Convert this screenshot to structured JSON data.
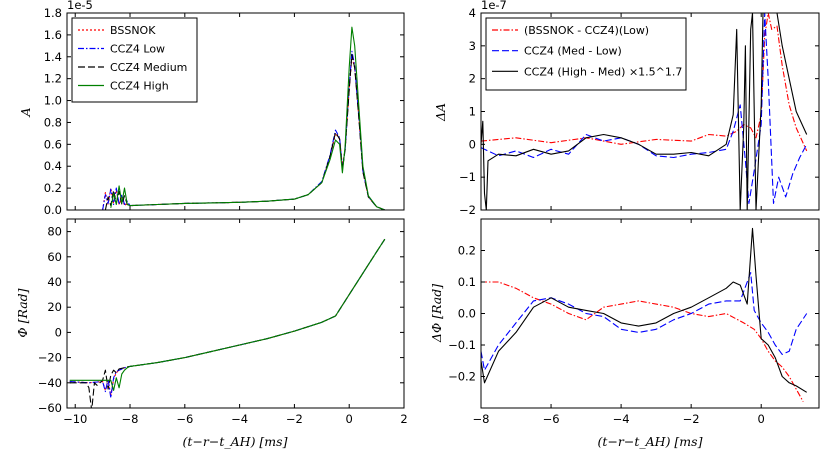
{
  "chart_data": [
    {
      "type": "line",
      "ylabel": "A",
      "exponent": "1e-5",
      "xlim": [
        -10.3,
        2
      ],
      "ylim": [
        0,
        1.8
      ],
      "xticks": [
        -10,
        -8,
        -6,
        -4,
        -2,
        0,
        2
      ],
      "xticklabels": [
        "",
        "",
        "",
        "",
        "",
        "",
        ""
      ],
      "yticks": [
        0,
        0.2,
        0.4,
        0.6,
        0.8,
        1.0,
        1.2,
        1.4,
        1.6,
        1.8
      ],
      "yticklabels": [
        "0.0",
        "0.2",
        "0.4",
        "0.6",
        "0.8",
        "1.0",
        "1.2",
        "1.4",
        "1.6",
        "1.8"
      ],
      "legend": "top-left",
      "series": [
        {
          "name": "BSSNOK",
          "color": "#ff0000",
          "dash": "2,2",
          "x": [
            -9.0,
            -8.9,
            -8.8,
            -8.7,
            -8.6,
            -8.5,
            -8.4,
            -8.3,
            -8.2,
            -8.1,
            -8.0,
            -7.0,
            -6.0,
            -5.0,
            -4.0,
            -3.0,
            -2.0,
            -1.5,
            -1.0,
            -0.7,
            -0.5,
            -0.35,
            -0.25,
            -0.15,
            0.0,
            0.1,
            0.2,
            0.35,
            0.5,
            0.7,
            1.0,
            1.3
          ],
          "y": [
            0.0,
            0.16,
            0.05,
            0.2,
            0.06,
            0.18,
            0.05,
            0.12,
            0.04,
            0.06,
            0.04,
            0.05,
            0.06,
            0.065,
            0.07,
            0.08,
            0.1,
            0.14,
            0.25,
            0.48,
            0.7,
            0.65,
            0.4,
            0.55,
            1.1,
            1.4,
            1.3,
            0.85,
            0.35,
            0.12,
            0.03,
            0.0
          ]
        },
        {
          "name": "CCZ4 Low",
          "color": "#0000ff",
          "dash": "6,2,1.5,2",
          "x": [
            -9.0,
            -8.9,
            -8.8,
            -8.7,
            -8.6,
            -8.5,
            -8.4,
            -8.3,
            -8.2,
            -8.1,
            -8.0,
            -7.0,
            -6.0,
            -5.0,
            -4.0,
            -3.0,
            -2.0,
            -1.5,
            -1.0,
            -0.7,
            -0.5,
            -0.35,
            -0.25,
            -0.15,
            0.0,
            0.1,
            0.2,
            0.35,
            0.5,
            0.7,
            1.0,
            1.3
          ],
          "y": [
            0.0,
            0.14,
            0.06,
            0.19,
            0.05,
            0.2,
            0.05,
            0.14,
            0.05,
            0.08,
            0.04,
            0.05,
            0.06,
            0.065,
            0.07,
            0.08,
            0.1,
            0.14,
            0.26,
            0.5,
            0.73,
            0.66,
            0.38,
            0.55,
            1.12,
            1.45,
            1.32,
            0.86,
            0.36,
            0.12,
            0.03,
            0.0
          ]
        },
        {
          "name": "CCZ4 Medium",
          "color": "#000000",
          "dash": "7,3",
          "x": [
            -8.9,
            -8.8,
            -8.7,
            -8.6,
            -8.5,
            -8.4,
            -8.3,
            -8.2,
            -8.1,
            -8.0,
            -7.0,
            -6.0,
            -5.0,
            -4.0,
            -3.0,
            -2.0,
            -1.5,
            -1.0,
            -0.7,
            -0.5,
            -0.35,
            -0.25,
            -0.15,
            0.0,
            0.1,
            0.2,
            0.35,
            0.5,
            0.7,
            1.0,
            1.3
          ],
          "y": [
            0.0,
            0.12,
            0.04,
            0.18,
            0.06,
            0.17,
            0.05,
            0.13,
            0.05,
            0.04,
            0.05,
            0.06,
            0.065,
            0.07,
            0.08,
            0.1,
            0.14,
            0.25,
            0.49,
            0.71,
            0.65,
            0.37,
            0.55,
            1.1,
            1.42,
            1.3,
            0.85,
            0.35,
            0.12,
            0.03,
            0.0
          ]
        },
        {
          "name": "CCZ4 High",
          "color": "#008000",
          "dash": "",
          "x": [
            -8.7,
            -8.6,
            -8.5,
            -8.4,
            -8.3,
            -8.2,
            -8.1,
            -8.0,
            -7.0,
            -6.0,
            -5.0,
            -4.0,
            -3.0,
            -2.0,
            -1.5,
            -1.0,
            -0.7,
            -0.5,
            -0.35,
            -0.25,
            -0.15,
            0.0,
            0.1,
            0.2,
            0.35,
            0.5,
            0.7,
            1.0,
            1.3
          ],
          "y": [
            0.02,
            0.15,
            0.05,
            0.22,
            0.06,
            0.2,
            0.05,
            0.04,
            0.05,
            0.06,
            0.065,
            0.07,
            0.08,
            0.1,
            0.14,
            0.25,
            0.46,
            0.64,
            0.6,
            0.34,
            0.58,
            1.3,
            1.67,
            1.5,
            0.95,
            0.4,
            0.13,
            0.03,
            0.0
          ]
        }
      ]
    },
    {
      "type": "line",
      "ylabel": "ΔA",
      "exponent": "1e-7",
      "xlim": [
        -8,
        1.65
      ],
      "ylim": [
        -2,
        4
      ],
      "xticks": [
        -8,
        -6,
        -4,
        -2,
        0
      ],
      "xticklabels": [
        "",
        "",
        "",
        "",
        ""
      ],
      "yticks": [
        -2,
        -1,
        0,
        1,
        2,
        3,
        4
      ],
      "yticklabels": [
        "−2",
        "−1",
        "0",
        "1",
        "2",
        "3",
        "4"
      ],
      "legend": "top-left",
      "series": [
        {
          "name": "(BSSNOK - CCZ4)(Low)",
          "color": "#ff0000",
          "dash": "6,2,1.5,2",
          "x": [
            -8.0,
            -7.0,
            -6.0,
            -5.0,
            -4.0,
            -3.0,
            -2.0,
            -1.5,
            -1.0,
            -0.7,
            -0.5,
            -0.3,
            -0.15,
            0.0,
            0.1,
            0.2,
            0.3,
            0.45,
            0.6,
            0.8,
            1.0,
            1.3
          ],
          "y": [
            0.1,
            0.2,
            0.05,
            0.2,
            0.0,
            0.15,
            0.1,
            0.3,
            0.25,
            0.4,
            0.6,
            0.5,
            0.2,
            0.9,
            3.3,
            4.0,
            3.5,
            3.6,
            2.4,
            1.2,
            0.5,
            -0.2
          ]
        },
        {
          "name": "CCZ4 (Med - Low)",
          "color": "#0000ff",
          "dash": "7,3",
          "x": [
            -8.0,
            -7.5,
            -7.0,
            -6.5,
            -6.0,
            -5.5,
            -5.0,
            -4.5,
            -4.0,
            -3.5,
            -3.0,
            -2.5,
            -2.0,
            -1.5,
            -1.0,
            -0.8,
            -0.6,
            -0.45,
            -0.35,
            -0.2,
            0.0,
            0.1,
            0.2,
            0.35,
            0.5,
            0.7,
            0.9,
            1.1,
            1.3
          ],
          "y": [
            -0.1,
            -0.35,
            -0.2,
            -0.4,
            -0.15,
            -0.3,
            0.3,
            0.1,
            0.2,
            0.0,
            -0.35,
            -0.4,
            -0.3,
            -0.25,
            -0.15,
            0.4,
            1.2,
            -0.5,
            -1.8,
            -0.8,
            0.6,
            4.0,
            2.0,
            -1.8,
            -1.0,
            -1.6,
            -0.9,
            -0.4,
            0.0
          ]
        },
        {
          "name": "CCZ4 (High - Med) ×1.5^1.7",
          "color": "#000000",
          "dash": "",
          "x": [
            -8.0,
            -7.95,
            -7.9,
            -7.85,
            -7.8,
            -7.5,
            -7.0,
            -6.5,
            -6.0,
            -5.5,
            -5.0,
            -4.5,
            -4.0,
            -3.5,
            -3.0,
            -2.5,
            -2.0,
            -1.5,
            -1.0,
            -0.8,
            -0.7,
            -0.6,
            -0.5,
            -0.45,
            -0.4,
            -0.3,
            -0.25,
            -0.15,
            0.0,
            0.05,
            0.15,
            0.3,
            0.45,
            0.6,
            0.8,
            1.0,
            1.3
          ],
          "y": [
            0.0,
            0.7,
            -1.5,
            -2.0,
            -0.5,
            -0.3,
            -0.35,
            -0.15,
            -0.3,
            -0.2,
            0.2,
            0.3,
            0.2,
            0.0,
            -0.3,
            -0.3,
            -0.25,
            -0.35,
            0.0,
            0.9,
            3.5,
            -2.0,
            0.5,
            3.0,
            -2.0,
            3.5,
            4.0,
            -2.0,
            1.2,
            4.0,
            4.0,
            4.0,
            4.0,
            3.0,
            2.0,
            1.0,
            0.3
          ]
        }
      ]
    },
    {
      "type": "line",
      "ylabel": "Φ [Rad]",
      "xlabel": "(t−r−t_AH) [ms]",
      "xlim": [
        -10.3,
        2
      ],
      "ylim": [
        -60,
        90
      ],
      "xticks": [
        -10,
        -8,
        -6,
        -4,
        -2,
        0,
        2
      ],
      "xticklabels": [
        "−10",
        "−8",
        "−6",
        "−4",
        "−2",
        "0",
        "2"
      ],
      "yticks": [
        -60,
        -40,
        -20,
        0,
        20,
        40,
        60,
        80
      ],
      "yticklabels": [
        "−60",
        "−40",
        "−20",
        "0",
        "20",
        "40",
        "60",
        "80"
      ],
      "series": [
        {
          "name": "BSSNOK",
          "color": "#ff0000",
          "dash": "2,2",
          "x": [
            -10.2,
            -9.5,
            -9.0,
            -8.9,
            -8.8,
            -8.7,
            -8.6,
            -8.5,
            -8.4,
            -8.2,
            -8.0,
            -7.0,
            -6.0,
            -5.0,
            -4.0,
            -3.0,
            -2.0,
            -1.0,
            -0.5,
            0.0,
            0.5,
            1.0,
            1.3
          ],
          "y": [
            -39,
            -40,
            -39,
            -46,
            -38,
            -50,
            -37,
            -32,
            -30,
            -28,
            -27,
            -24,
            -20,
            -15,
            -10,
            -5,
            1,
            8,
            13,
            30,
            47,
            64,
            74
          ]
        },
        {
          "name": "CCZ4 Low",
          "color": "#0000ff",
          "dash": "6,2,1.5,2",
          "x": [
            -10.2,
            -9.5,
            -9.0,
            -8.9,
            -8.8,
            -8.7,
            -8.6,
            -8.5,
            -8.4,
            -8.2,
            -8.0,
            -7.0,
            -6.0,
            -5.0,
            -4.0,
            -3.0,
            -2.0,
            -1.0,
            -0.5,
            0.0,
            0.5,
            1.0,
            1.3
          ],
          "y": [
            -39,
            -40,
            -39,
            -47,
            -37,
            -52,
            -36,
            -31,
            -30,
            -28,
            -27,
            -24,
            -20,
            -15,
            -10,
            -5,
            1,
            8,
            13,
            30,
            47,
            64,
            74
          ]
        },
        {
          "name": "CCZ4 Medium",
          "color": "#000000",
          "dash": "7,3",
          "x": [
            -10.2,
            -9.6,
            -9.5,
            -9.4,
            -9.3,
            -9.2,
            -9.0,
            -8.9,
            -8.8,
            -8.7,
            -8.6,
            -8.5,
            -8.4,
            -8.2,
            -8.0,
            -7.0,
            -6.0,
            -5.0,
            -4.0,
            -3.0,
            -2.0,
            -1.0,
            -0.5,
            0.0,
            0.5,
            1.0,
            1.3
          ],
          "y": [
            -40,
            -40,
            -44,
            -62,
            -40,
            -42,
            -38,
            -30,
            -45,
            -34,
            -30,
            -32,
            -29,
            -28,
            -27,
            -24,
            -20,
            -15,
            -10,
            -5,
            1,
            8,
            13,
            30,
            47,
            64,
            74
          ]
        },
        {
          "name": "CCZ4 High",
          "color": "#008000",
          "dash": "",
          "x": [
            -10.2,
            -9.0,
            -8.7,
            -8.6,
            -8.5,
            -8.4,
            -8.3,
            -8.2,
            -8.1,
            -8.0,
            -7.0,
            -6.0,
            -5.0,
            -4.0,
            -3.0,
            -2.0,
            -1.0,
            -0.5,
            0.0,
            0.5,
            1.0,
            1.3
          ],
          "y": [
            -38,
            -38,
            -38,
            -46,
            -36,
            -44,
            -33,
            -30,
            -28,
            -27,
            -24,
            -20,
            -15,
            -10,
            -5,
            1,
            8,
            13,
            30,
            47,
            64,
            74
          ]
        }
      ]
    },
    {
      "type": "line",
      "ylabel": "ΔΦ [Rad]",
      "xlabel": "(t−r−t_AH) [ms]",
      "xlim": [
        -8,
        1.65
      ],
      "ylim": [
        -0.3,
        0.3
      ],
      "xticks": [
        -8,
        -6,
        -4,
        -2,
        0
      ],
      "xticklabels": [
        "−8",
        "−6",
        "−4",
        "−2",
        "0"
      ],
      "yticks": [
        -0.2,
        -0.1,
        0.0,
        0.1,
        0.2
      ],
      "yticklabels": [
        "−0.2",
        "−0.1",
        "0.0",
        "0.1",
        "0.2"
      ],
      "series": [
        {
          "name": "(BSSNOK - CCZ4)(Low)",
          "color": "#ff0000",
          "dash": "6,2,1.5,2",
          "x": [
            -8.0,
            -7.5,
            -7.0,
            -6.5,
            -6.0,
            -5.5,
            -5.0,
            -4.5,
            -4.0,
            -3.5,
            -3.0,
            -2.5,
            -2.0,
            -1.5,
            -1.0,
            -0.5,
            -0.2,
            0.0,
            0.2,
            0.4,
            0.6,
            0.8,
            1.0,
            1.2
          ],
          "y": [
            0.1,
            0.1,
            0.08,
            0.05,
            0.03,
            0.0,
            -0.02,
            0.02,
            0.03,
            0.04,
            0.03,
            0.02,
            0.0,
            -0.01,
            0.0,
            -0.03,
            -0.05,
            -0.08,
            -0.12,
            -0.15,
            -0.17,
            -0.2,
            -0.24,
            -0.28
          ]
        },
        {
          "name": "CCZ4 (Med - Low)",
          "color": "#0000ff",
          "dash": "7,3",
          "x": [
            -8.0,
            -7.9,
            -7.5,
            -7.0,
            -6.5,
            -6.0,
            -5.5,
            -5.0,
            -4.5,
            -4.0,
            -3.5,
            -3.0,
            -2.5,
            -2.0,
            -1.5,
            -1.0,
            -0.6,
            -0.3,
            -0.2,
            0.0,
            0.2,
            0.4,
            0.6,
            0.8,
            1.0,
            1.3
          ],
          "y": [
            -0.12,
            -0.18,
            -0.1,
            -0.03,
            0.04,
            0.05,
            0.03,
            0.0,
            -0.01,
            -0.05,
            -0.06,
            -0.05,
            -0.02,
            0.0,
            0.03,
            0.04,
            0.04,
            0.13,
            0.01,
            -0.03,
            -0.06,
            -0.1,
            -0.13,
            -0.12,
            -0.05,
            0.0
          ]
        },
        {
          "name": "CCZ4 (High - Med) ×1.5^1.7",
          "color": "#000000",
          "dash": "",
          "x": [
            -8.0,
            -7.9,
            -7.5,
            -7.0,
            -6.5,
            -6.0,
            -5.5,
            -5.0,
            -4.5,
            -4.0,
            -3.5,
            -3.0,
            -2.5,
            -2.0,
            -1.5,
            -1.0,
            -0.8,
            -0.6,
            -0.4,
            -0.25,
            -0.15,
            0.0,
            0.2,
            0.4,
            0.6,
            0.8,
            1.0,
            1.3
          ],
          "y": [
            -0.15,
            -0.22,
            -0.12,
            -0.06,
            0.02,
            0.05,
            0.02,
            0.01,
            0.0,
            -0.03,
            -0.04,
            -0.03,
            0.0,
            0.02,
            0.05,
            0.08,
            0.1,
            0.09,
            0.03,
            0.27,
            0.12,
            -0.08,
            -0.1,
            -0.14,
            -0.2,
            -0.22,
            -0.23,
            -0.25
          ]
        }
      ]
    }
  ]
}
